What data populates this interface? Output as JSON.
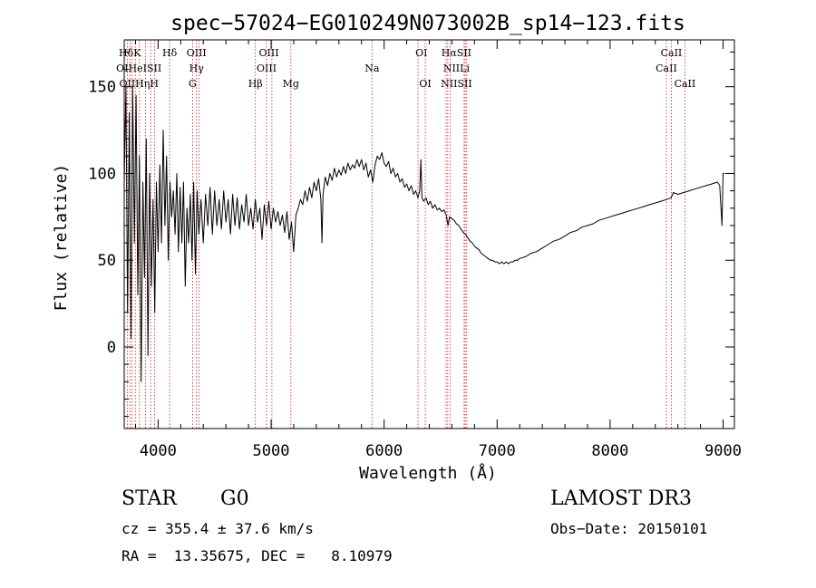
{
  "chart_data": {
    "type": "line",
    "title": "spec−57024−EG010249N073002B_sp14−123.fits",
    "xlabel": "Wavelength (Å)",
    "ylabel": "Flux (relative)",
    "xlim": [
      3700,
      9100
    ],
    "ylim": [
      -47,
      177
    ],
    "x_ticks": [
      4000,
      5000,
      6000,
      7000,
      8000,
      9000
    ],
    "y_ticks": [
      0,
      50,
      100,
      150
    ],
    "series": [
      {
        "name": "flux",
        "points": [
          [
            3700,
            95
          ],
          [
            3715,
            150
          ],
          [
            3730,
            20
          ],
          [
            3745,
            135
          ],
          [
            3760,
            5
          ],
          [
            3775,
            150
          ],
          [
            3790,
            60
          ],
          [
            3805,
            145
          ],
          [
            3820,
            30
          ],
          [
            3835,
            110
          ],
          [
            3850,
            -20
          ],
          [
            3865,
            95
          ],
          [
            3880,
            40
          ],
          [
            3895,
            120
          ],
          [
            3910,
            -5
          ],
          [
            3925,
            100
          ],
          [
            3940,
            35
          ],
          [
            3955,
            85
          ],
          [
            3970,
            20
          ],
          [
            3985,
            95
          ],
          [
            4000,
            55
          ],
          [
            4015,
            105
          ],
          [
            4030,
            60
          ],
          [
            4045,
            125
          ],
          [
            4060,
            70
          ],
          [
            4075,
            110
          ],
          [
            4090,
            50
          ],
          [
            4105,
            95
          ],
          [
            4120,
            75
          ],
          [
            4135,
            90
          ],
          [
            4150,
            65
          ],
          [
            4165,
            100
          ],
          [
            4180,
            55
          ],
          [
            4195,
            92
          ],
          [
            4210,
            60
          ],
          [
            4225,
            95
          ],
          [
            4240,
            35
          ],
          [
            4255,
            80
          ],
          [
            4270,
            60
          ],
          [
            4285,
            88
          ],
          [
            4300,
            50
          ],
          [
            4315,
            95
          ],
          [
            4330,
            42
          ],
          [
            4345,
            90
          ],
          [
            4360,
            65
          ],
          [
            4380,
            85
          ],
          [
            4400,
            60
          ],
          [
            4420,
            88
          ],
          [
            4440,
            70
          ],
          [
            4460,
            92
          ],
          [
            4480,
            65
          ],
          [
            4500,
            90
          ],
          [
            4520,
            70
          ],
          [
            4540,
            85
          ],
          [
            4560,
            68
          ],
          [
            4580,
            90
          ],
          [
            4600,
            72
          ],
          [
            4620,
            85
          ],
          [
            4640,
            65
          ],
          [
            4660,
            88
          ],
          [
            4680,
            70
          ],
          [
            4700,
            86
          ],
          [
            4720,
            68
          ],
          [
            4740,
            82
          ],
          [
            4760,
            72
          ],
          [
            4780,
            88
          ],
          [
            4800,
            70
          ],
          [
            4820,
            80
          ],
          [
            4840,
            68
          ],
          [
            4860,
            85
          ],
          [
            4880,
            72
          ],
          [
            4900,
            80
          ],
          [
            4920,
            62
          ],
          [
            4940,
            82
          ],
          [
            4960,
            70
          ],
          [
            4980,
            84
          ],
          [
            5000,
            68
          ],
          [
            5020,
            80
          ],
          [
            5040,
            72
          ],
          [
            5060,
            78
          ],
          [
            5080,
            70
          ],
          [
            5100,
            76
          ],
          [
            5120,
            66
          ],
          [
            5140,
            78
          ],
          [
            5160,
            62
          ],
          [
            5180,
            72
          ],
          [
            5200,
            55
          ],
          [
            5220,
            76
          ],
          [
            5240,
            80
          ],
          [
            5260,
            85
          ],
          [
            5280,
            82
          ],
          [
            5300,
            90
          ],
          [
            5320,
            84
          ],
          [
            5340,
            92
          ],
          [
            5360,
            86
          ],
          [
            5380,
            95
          ],
          [
            5400,
            90
          ],
          [
            5420,
            97
          ],
          [
            5440,
            85
          ],
          [
            5450,
            60
          ],
          [
            5460,
            88
          ],
          [
            5480,
            98
          ],
          [
            5500,
            93
          ],
          [
            5520,
            100
          ],
          [
            5540,
            96
          ],
          [
            5560,
            103
          ],
          [
            5580,
            98
          ],
          [
            5600,
            102
          ],
          [
            5620,
            99
          ],
          [
            5640,
            104
          ],
          [
            5660,
            100
          ],
          [
            5680,
            106
          ],
          [
            5700,
            102
          ],
          [
            5720,
            105
          ],
          [
            5740,
            103
          ],
          [
            5760,
            108
          ],
          [
            5780,
            104
          ],
          [
            5800,
            108
          ],
          [
            5820,
            102
          ],
          [
            5840,
            106
          ],
          [
            5860,
            98
          ],
          [
            5880,
            102
          ],
          [
            5900,
            95
          ],
          [
            5920,
            105
          ],
          [
            5940,
            110
          ],
          [
            5960,
            108
          ],
          [
            5980,
            112
          ],
          [
            6000,
            106
          ],
          [
            6020,
            104
          ],
          [
            6040,
            107
          ],
          [
            6060,
            100
          ],
          [
            6080,
            103
          ],
          [
            6100,
            98
          ],
          [
            6120,
            100
          ],
          [
            6140,
            95
          ],
          [
            6160,
            97
          ],
          [
            6180,
            92
          ],
          [
            6200,
            94
          ],
          [
            6220,
            90
          ],
          [
            6240,
            93
          ],
          [
            6260,
            88
          ],
          [
            6280,
            90
          ],
          [
            6300,
            86
          ],
          [
            6315,
            90
          ],
          [
            6325,
            108
          ],
          [
            6335,
            86
          ],
          [
            6350,
            84
          ],
          [
            6370,
            86
          ],
          [
            6390,
            82
          ],
          [
            6410,
            84
          ],
          [
            6430,
            80
          ],
          [
            6450,
            82
          ],
          [
            6470,
            79
          ],
          [
            6490,
            80
          ],
          [
            6510,
            78
          ],
          [
            6530,
            79
          ],
          [
            6550,
            76
          ],
          [
            6565,
            70
          ],
          [
            6580,
            75
          ],
          [
            6600,
            74
          ],
          [
            6620,
            73
          ],
          [
            6640,
            71
          ],
          [
            6660,
            70
          ],
          [
            6680,
            68
          ],
          [
            6700,
            66
          ],
          [
            6720,
            65
          ],
          [
            6740,
            63
          ],
          [
            6760,
            61
          ],
          [
            6780,
            60
          ],
          [
            6800,
            58
          ],
          [
            6820,
            57
          ],
          [
            6840,
            56
          ],
          [
            6860,
            54
          ],
          [
            6880,
            53
          ],
          [
            6900,
            52
          ],
          [
            6920,
            51
          ],
          [
            6940,
            50
          ],
          [
            6960,
            50
          ],
          [
            6980,
            49
          ],
          [
            7000,
            49
          ],
          [
            7020,
            48
          ],
          [
            7040,
            49
          ],
          [
            7060,
            48
          ],
          [
            7080,
            49
          ],
          [
            7100,
            48
          ],
          [
            7120,
            49
          ],
          [
            7140,
            49
          ],
          [
            7160,
            50
          ],
          [
            7180,
            50
          ],
          [
            7200,
            51
          ],
          [
            7250,
            52
          ],
          [
            7300,
            54
          ],
          [
            7350,
            55
          ],
          [
            7400,
            57
          ],
          [
            7450,
            59
          ],
          [
            7500,
            61
          ],
          [
            7550,
            62
          ],
          [
            7600,
            64
          ],
          [
            7650,
            66
          ],
          [
            7700,
            67
          ],
          [
            7750,
            69
          ],
          [
            7800,
            70
          ],
          [
            7850,
            71
          ],
          [
            7900,
            73
          ],
          [
            7950,
            74
          ],
          [
            8000,
            75
          ],
          [
            8050,
            76
          ],
          [
            8100,
            77
          ],
          [
            8150,
            78
          ],
          [
            8200,
            79
          ],
          [
            8250,
            80
          ],
          [
            8300,
            81
          ],
          [
            8350,
            82
          ],
          [
            8400,
            83
          ],
          [
            8450,
            84
          ],
          [
            8500,
            85
          ],
          [
            8540,
            86
          ],
          [
            8560,
            89
          ],
          [
            8600,
            88
          ],
          [
            8650,
            89
          ],
          [
            8700,
            90
          ],
          [
            8750,
            91
          ],
          [
            8800,
            92
          ],
          [
            8850,
            93
          ],
          [
            8900,
            94
          ],
          [
            8950,
            95
          ],
          [
            8970,
            93
          ],
          [
            8990,
            70
          ],
          [
            9000,
            100
          ],
          [
            9010,
            100
          ]
        ]
      }
    ],
    "spectral_lines": [
      {
        "label": "HδK",
        "wave": 3750,
        "row": 0
      },
      {
        "label": "Hδ",
        "wave": 4102,
        "row": 0
      },
      {
        "label": "OIII",
        "wave": 4340,
        "row": 0
      },
      {
        "label": "OIII",
        "wave": 4980,
        "row": 0
      },
      {
        "label": "OI",
        "wave": 6330,
        "row": 0
      },
      {
        "label": "HαSII",
        "wave": 6640,
        "row": 0
      },
      {
        "label": "CaII",
        "wave": 8542,
        "row": 0
      },
      {
        "label": "OIHeISII",
        "wave": 3830,
        "row": 1
      },
      {
        "label": "Hγ",
        "wave": 4340,
        "row": 1
      },
      {
        "label": "OIII",
        "wave": 4960,
        "row": 1
      },
      {
        "label": "Na",
        "wave": 5893,
        "row": 1
      },
      {
        "label": "NIILi",
        "wave": 6640,
        "row": 1
      },
      {
        "label": "CaII",
        "wave": 8498,
        "row": 1
      },
      {
        "label": "OIIHηH",
        "wave": 3830,
        "row": 2
      },
      {
        "label": "G",
        "wave": 4305,
        "row": 2
      },
      {
        "label": "Hβ",
        "wave": 4861,
        "row": 2
      },
      {
        "label": "Mg",
        "wave": 5175,
        "row": 2
      },
      {
        "label": "OI",
        "wave": 6364,
        "row": 2
      },
      {
        "label": "NIISII",
        "wave": 6640,
        "row": 2
      },
      {
        "label": "CaII",
        "wave": 8662,
        "row": 2
      }
    ],
    "line_marker_waves": [
      3727,
      3750,
      3770,
      3798,
      3835,
      3889,
      3934,
      3968,
      4102,
      4305,
      4340,
      4363,
      4861,
      4959,
      5007,
      5175,
      5893,
      6300,
      6364,
      6548,
      6563,
      6584,
      6708,
      6717,
      6731,
      8498,
      8542,
      8662
    ]
  },
  "footer": {
    "object_type": "STAR",
    "subclass": "G0",
    "survey": "LAMOST DR3",
    "redshift": "cz = 355.4 ± 37.6 km/s",
    "obs_date": "Obs−Date: 20150101",
    "coords": "RA =  13.35675, DEC =   8.10979"
  },
  "colors": {
    "line_marker": "#cc2222",
    "spectrum": "#000000"
  }
}
